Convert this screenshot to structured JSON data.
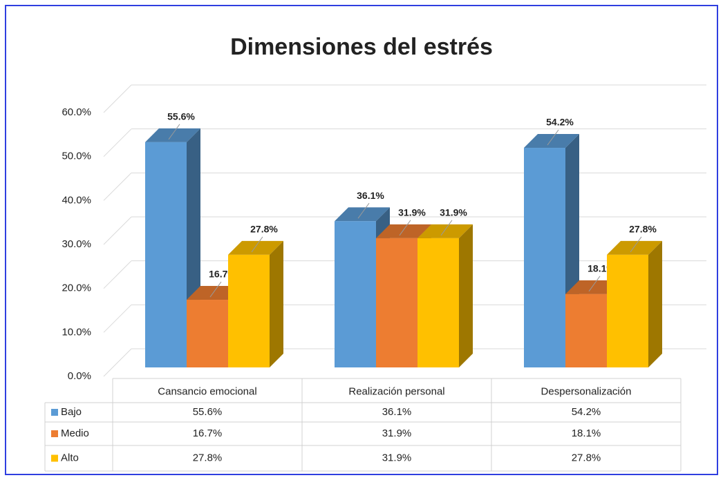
{
  "chart_data": {
    "type": "bar3d",
    "title": "Dimensiones del estrés",
    "categories": [
      "Cansancio emocional",
      "Realización personal",
      "Despersonalización"
    ],
    "series": [
      {
        "name": "Bajo",
        "color": "#5b9bd5",
        "values": [
          55.6,
          36.1,
          54.2
        ],
        "value_labels": [
          "55.6%",
          "36.1%",
          "54.2%"
        ]
      },
      {
        "name": "Medio",
        "color": "#ed7d31",
        "values": [
          16.7,
          31.9,
          18.1
        ],
        "value_labels": [
          "16.7%",
          "31.9%",
          "18.1%"
        ]
      },
      {
        "name": "Alto",
        "color": "#ffc000",
        "values": [
          27.8,
          31.9,
          27.8
        ],
        "value_labels": [
          "27.8%",
          "31.9%",
          "27.8%"
        ]
      }
    ],
    "ylim": [
      0,
      60
    ],
    "yticks": [
      {
        "value": 0,
        "label": "0.0%"
      },
      {
        "value": 10,
        "label": "10.0%"
      },
      {
        "value": 20,
        "label": "20.0%"
      },
      {
        "value": 30,
        "label": "30.0%"
      },
      {
        "value": 40,
        "label": "40.0%"
      },
      {
        "value": 50,
        "label": "50.0%"
      },
      {
        "value": 60,
        "label": "60.0%"
      }
    ],
    "grid": true,
    "data_table": true
  }
}
